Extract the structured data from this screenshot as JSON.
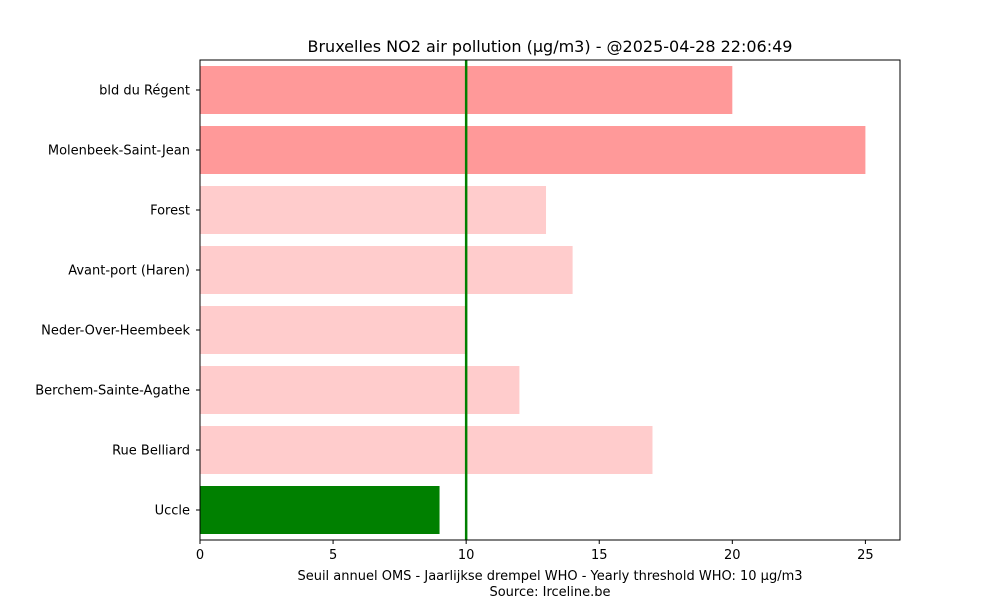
{
  "chart_data": {
    "type": "bar",
    "orientation": "horizontal",
    "title": "Bruxelles NO2 air pollution (µg/m3) - @2025-04-28 22:06:49",
    "xlabel": "Seuil annuel OMS - Jaarlijkse drempel WHO - Yearly threshold WHO: 10 µg/m3",
    "source": "Source: Irceline.be",
    "ylabel": "",
    "xlim": [
      0,
      26.3
    ],
    "xticks": [
      0,
      5,
      10,
      15,
      20,
      25
    ],
    "grid": false,
    "threshold": 10,
    "threshold_color": "#008000",
    "categories": [
      "bld du Régent",
      "Molenbeek-Saint-Jean",
      "Forest",
      "Avant-port (Haren)",
      "Neder-Over-Heembeek",
      "Berchem-Sainte-Agathe",
      "Rue Belliard",
      "Uccle"
    ],
    "values": [
      20,
      25,
      13,
      14,
      10,
      12,
      17,
      9
    ],
    "colors": [
      "#ff9999",
      "#ff9999",
      "#ffcccc",
      "#ffcccc",
      "#ffcccc",
      "#ffcccc",
      "#ffcccc",
      "#008000"
    ]
  }
}
